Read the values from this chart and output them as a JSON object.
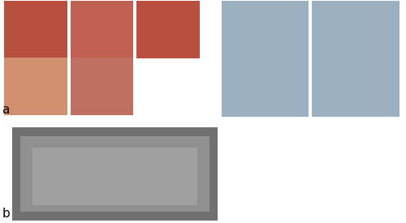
{
  "background_color": "#ffffff",
  "label_a": "a",
  "label_b": "b",
  "label_fontsize": 11,
  "intraoral_colors": [
    "#b85040",
    "#c06050",
    "#b85040",
    "#d09070",
    "#c07060"
  ],
  "facial_colors": [
    "#9ab0c0",
    "#9ab0c0"
  ],
  "panoramic_color": "#707070",
  "panoramic_mid_color": "#909090",
  "panoramic_center_color": "#a0a0a0"
}
